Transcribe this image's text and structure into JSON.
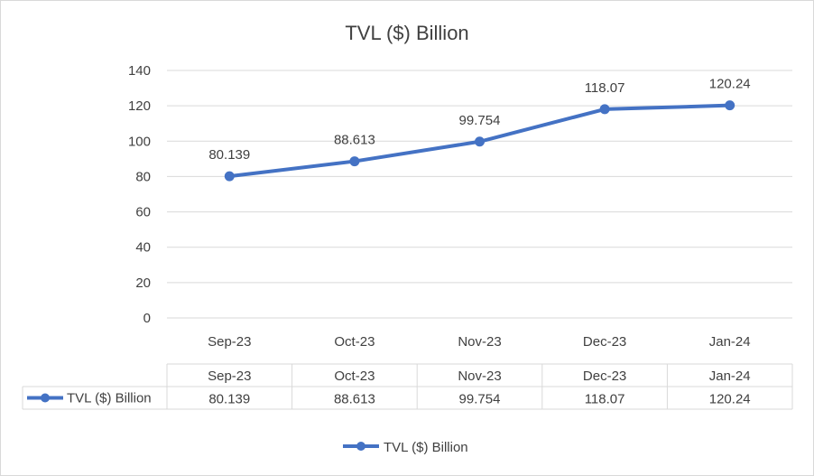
{
  "chart_data": {
    "type": "line",
    "title": "TVL ($) Billion",
    "categories": [
      "Sep-23",
      "Oct-23",
      "Nov-23",
      "Dec-23",
      "Jan-24"
    ],
    "series": [
      {
        "name": "TVL ($) Billion",
        "values": [
          80.139,
          88.613,
          99.754,
          118.07,
          120.24
        ],
        "labels": [
          "80.139",
          "88.613",
          "99.754",
          "118.07",
          "120.24"
        ],
        "color": "#4472c4"
      }
    ],
    "yticks": [
      "0",
      "20",
      "40",
      "60",
      "80",
      "100",
      "120",
      "140"
    ],
    "ylim": [
      0,
      140
    ],
    "grid": true,
    "legend": "bottom",
    "data_table": true
  }
}
